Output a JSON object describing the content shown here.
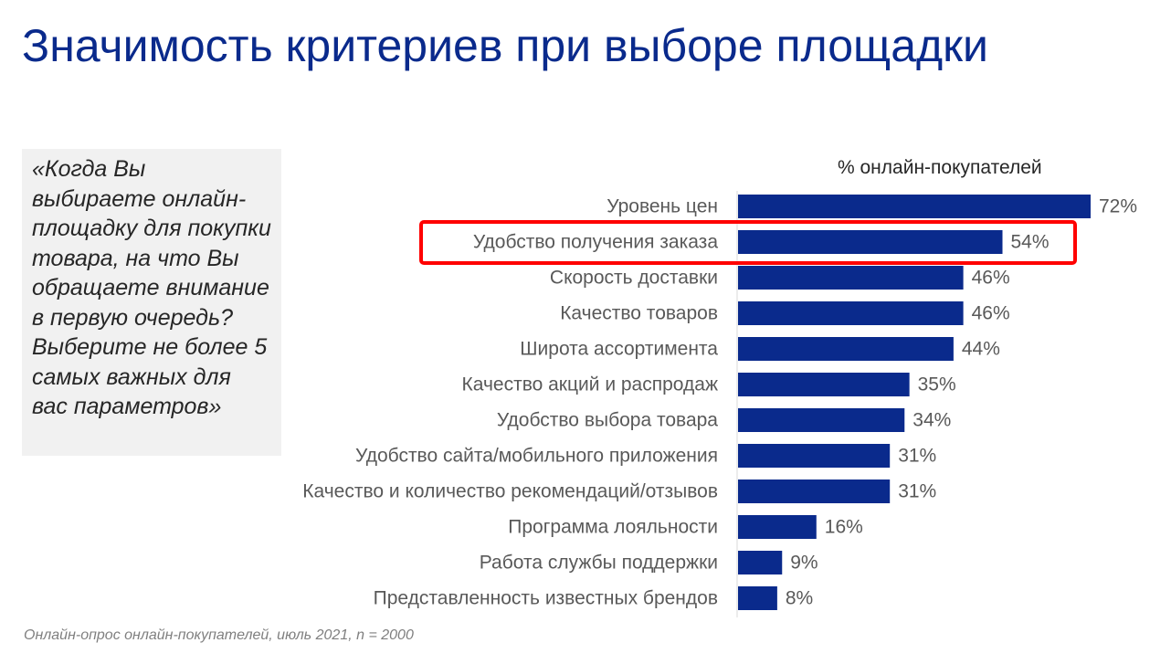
{
  "title": "Значимость критериев при выборе площадки",
  "question": "«Когда Вы выбираете онлайн-площадку для покупки товара, на что Вы обращаете внимание в первую очередь? Выберите не более 5 самых важных для вас параметров»",
  "source": "Онлайн-опрос онлайн-покупателей, июль 2021, n = 2000",
  "colors": {
    "bar": "#0a2a8c",
    "highlight": "#ff0000",
    "title": "#0a2a8c"
  },
  "chart_data": {
    "type": "bar",
    "orientation": "horizontal",
    "unit_label": "% онлайн-покупателей",
    "categories": [
      "Уровень цен",
      "Удобство получения заказа",
      "Скорость доставки",
      "Качество товаров",
      "Широта ассортимента",
      "Качество акций и распродаж",
      "Удобство выбора товара",
      "Удобство сайта/мобильного приложения",
      "Качество и количество рекомендаций/отзывов",
      "Программа лояльности",
      "Работа службы поддержки",
      "Представленность известных брендов"
    ],
    "values": [
      72,
      54,
      46,
      46,
      44,
      35,
      34,
      31,
      31,
      16,
      9,
      8
    ],
    "value_labels": [
      "72%",
      "54%",
      "46%",
      "46%",
      "44%",
      "35%",
      "34%",
      "31%",
      "31%",
      "16%",
      "9%",
      "8%"
    ],
    "highlighted_category": "Удобство получения заказа",
    "xlim": [
      0,
      72
    ],
    "grid": false,
    "legend": "none"
  }
}
